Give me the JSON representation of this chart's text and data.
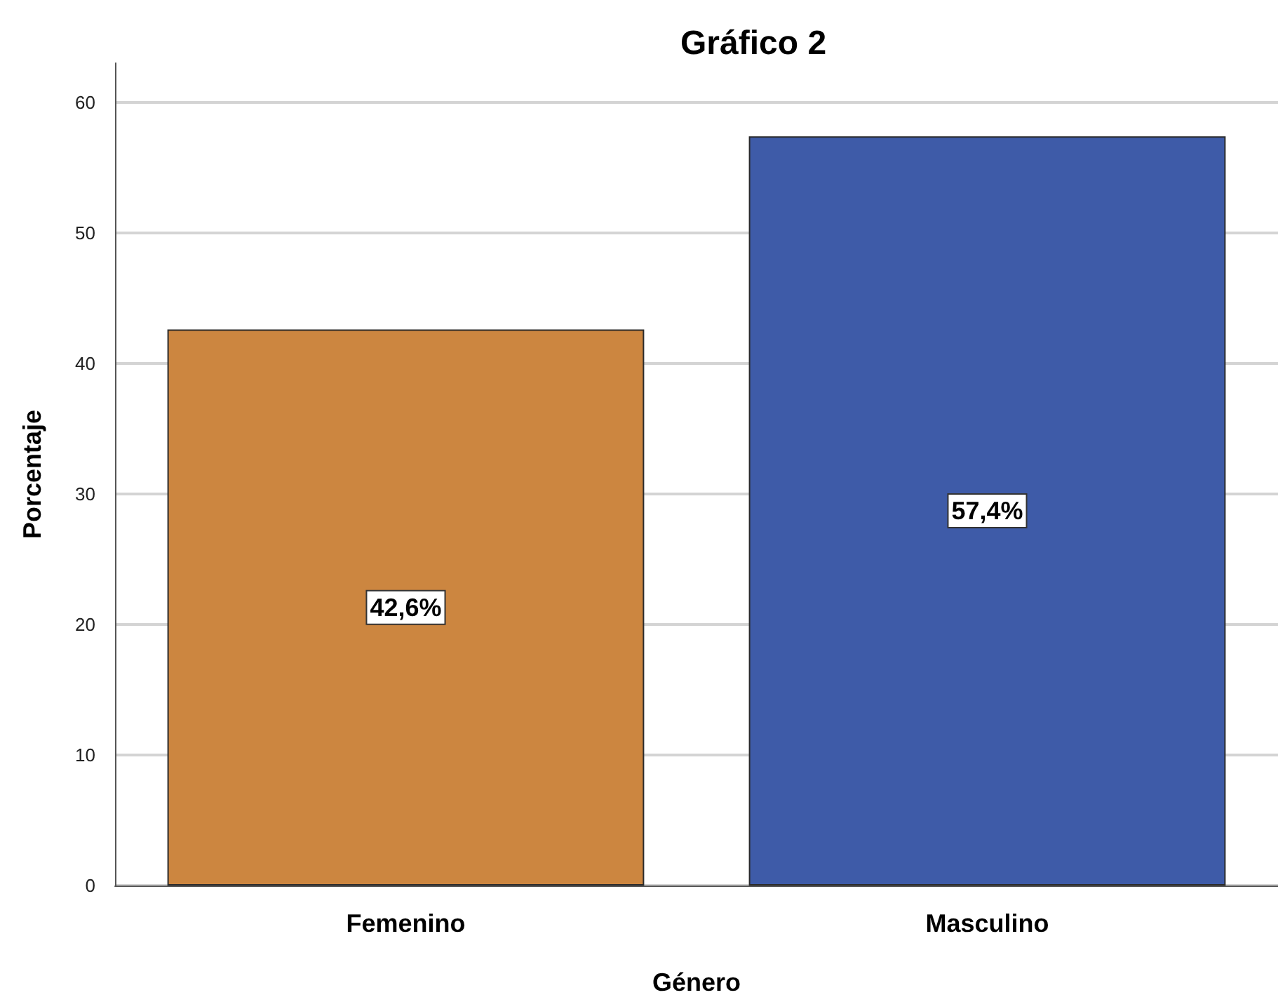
{
  "chart_data": {
    "type": "bar",
    "title": "Gráfico 2",
    "xlabel": "Género",
    "ylabel": "Porcentaje",
    "categories": [
      "Femenino",
      "Masculino"
    ],
    "values": [
      42.6,
      57.4
    ],
    "colors": [
      "#cc8640",
      "#3e5ba8"
    ],
    "value_labels": [
      "42,6%",
      "57,4%"
    ],
    "ylim": [
      0,
      63
    ],
    "yticks": [
      0,
      10,
      20,
      30,
      40,
      50,
      60
    ],
    "grid": "y"
  }
}
